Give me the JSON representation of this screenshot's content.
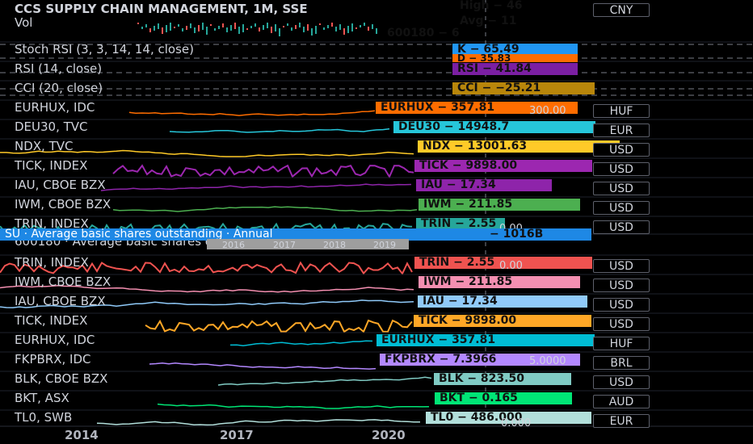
{
  "chart_header": {
    "title": "CCS SUPPLY CHAIN MANAGEMENT, 1M, SSE",
    "vol": "Vol",
    "currency": "CNY",
    "tags": [
      {
        "text": "High − 46",
        "color": "#1e88e5"
      },
      {
        "text": "Avg − 11",
        "color": "#ffffff"
      },
      {
        "text": "600180 − 6",
        "color": "#26a69a"
      }
    ]
  },
  "panes": [
    {
      "name": "Stoch RSI (3, 3, 14, 14, close)",
      "tag": "K − 65.49",
      "tag_color": "#2196f3",
      "tag2": "D − 35.83",
      "tag2_color": "#ff6d00"
    },
    {
      "name": "RSI (14, close)",
      "tag": "RSI − 41.84",
      "tag_color": "#7b1fa2"
    },
    {
      "name": "CCI (20, close)",
      "tag": "CCI − −25.21",
      "tag_color": "#b8860b"
    },
    {
      "name": "EURHUX, IDC",
      "tag": "EURHUX − 357.81",
      "tag_color": "#ff6d00",
      "sub": "300.00",
      "currency": "HUF",
      "line_color": "#ff6d00"
    },
    {
      "name": "DEU30, TVC",
      "tag": "DEU30 − 14948.7",
      "tag_color": "#26c6da",
      "currency": "EUR",
      "line_color": "#26c6da"
    },
    {
      "name": "NDX, TVC",
      "tag": "NDX − 13001.63",
      "tag_color": "#ffca28",
      "currency": "USD",
      "line_color": "#ffca28"
    },
    {
      "name": "TICK, INDEX",
      "tag": "TICK − 9898.00",
      "tag_color": "#9c27b0",
      "currency": "USD",
      "line_color": "#9c27b0"
    },
    {
      "name": "IAU, CBOE BZX",
      "tag": "IAU − 17.34",
      "tag_color": "#8e24aa",
      "currency": "USD",
      "line_color": "#8e24aa"
    },
    {
      "name": "IWM, CBOE BZX",
      "tag": "IWM − 211.85",
      "tag_color": "#4caf50",
      "currency": "USD",
      "line_color": "#4caf50"
    },
    {
      "name": "TRIN, INDEX",
      "tag": "TRIN − 2.55",
      "tag_color": "#26a69a",
      "sub": "0.00",
      "currency": "USD",
      "line_color": "#26a69a"
    },
    {
      "name": "600180 · Average basic shares outstanding · Annual · An",
      "tag": "− 1016B",
      "tag_color": "#1e88e5",
      "overlay": "SU · Average basic shares outstanding · Annual"
    },
    {
      "name": "TRIN, INDEX",
      "tag": "TRIN − 2.55",
      "tag_color": "#ef5350",
      "sub": "0.00",
      "currency": "USD",
      "line_color": "#ef5350"
    },
    {
      "name": "IWM, CBOE BZX",
      "tag": "IWM − 211.85",
      "tag_color": "#f48fb1",
      "currency": "USD",
      "line_color": "#f48fb1"
    },
    {
      "name": "IAU, CBOE BZX",
      "tag": "IAU − 17.34",
      "tag_color": "#90caf9",
      "currency": "USD",
      "line_color": "#90caf9"
    },
    {
      "name": "TICK, INDEX",
      "tag": "TICK − 9898.00",
      "tag_color": "#ffa726",
      "currency": "USD",
      "line_color": "#ffa726"
    },
    {
      "name": "EURHUX, IDC",
      "tag": "EURHUX − 357.81",
      "tag_color": "#00bcd4",
      "currency": "HUF",
      "line_color": "#00bcd4"
    },
    {
      "name": "FKPBRX, IDC",
      "tag": "FKPBRX − 7.3966",
      "tag_color": "#b388ff",
      "sub": "5.0000",
      "currency": "BRL",
      "line_color": "#b388ff"
    },
    {
      "name": "BLK, CBOE BZX",
      "tag": "BLK − 823.50",
      "tag_color": "#80cbc4",
      "currency": "USD",
      "line_color": "#80cbc4"
    },
    {
      "name": "BKT, ASX",
      "tag": "BKT − 0.165",
      "tag_color": "#00e676",
      "currency": "AUD",
      "line_color": "#00e676"
    },
    {
      "name": "TL0, SWB",
      "tag": "TL0 − 486.000",
      "tag_color": "#b2dfdb",
      "sub": "0.000",
      "currency": "EUR",
      "line_color": "#b2dfdb"
    }
  ],
  "year_ticks_small": [
    "2016",
    "2017",
    "2018",
    "2019"
  ],
  "x_axis_years": [
    "2014",
    "2017",
    "2020"
  ]
}
